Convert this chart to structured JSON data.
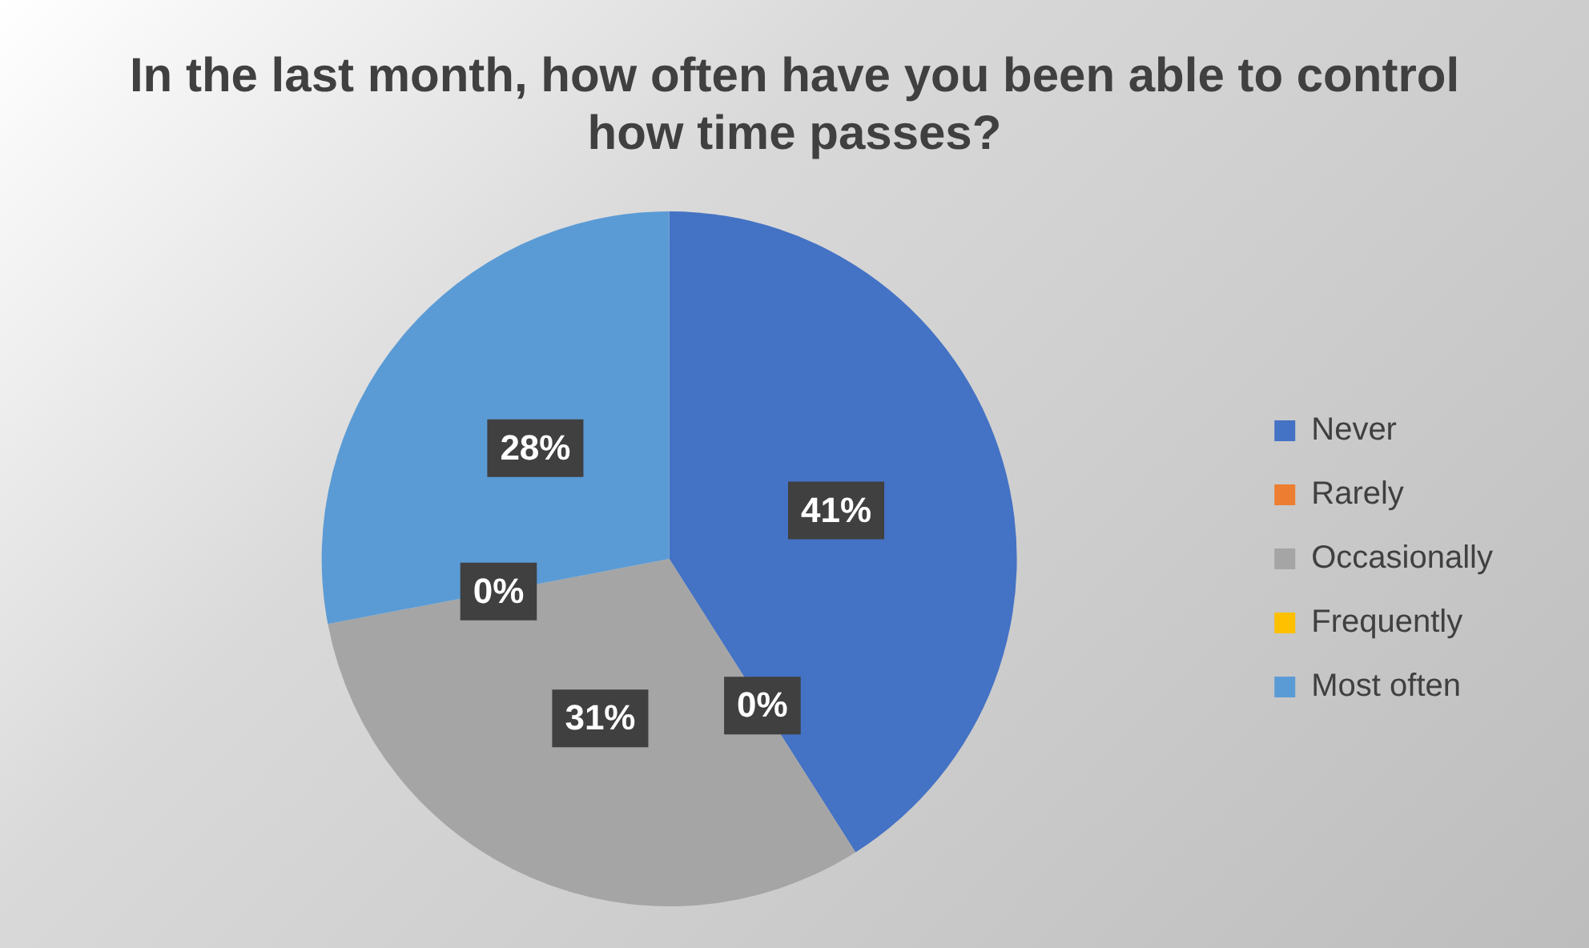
{
  "chart_data": {
    "type": "pie",
    "title": "In the last month, how often have you been able to control how time passes?",
    "categories": [
      "Never",
      "Rarely",
      "Occasionally",
      "Frequently",
      "Most often"
    ],
    "values": [
      41,
      0,
      31,
      0,
      28
    ],
    "colors": [
      "#4472c4",
      "#ed7d31",
      "#a5a5a5",
      "#ffc000",
      "#5b9bd5"
    ],
    "value_labels": [
      "41%",
      "0%",
      "31%",
      "0%",
      "28%"
    ],
    "legend": "right"
  }
}
